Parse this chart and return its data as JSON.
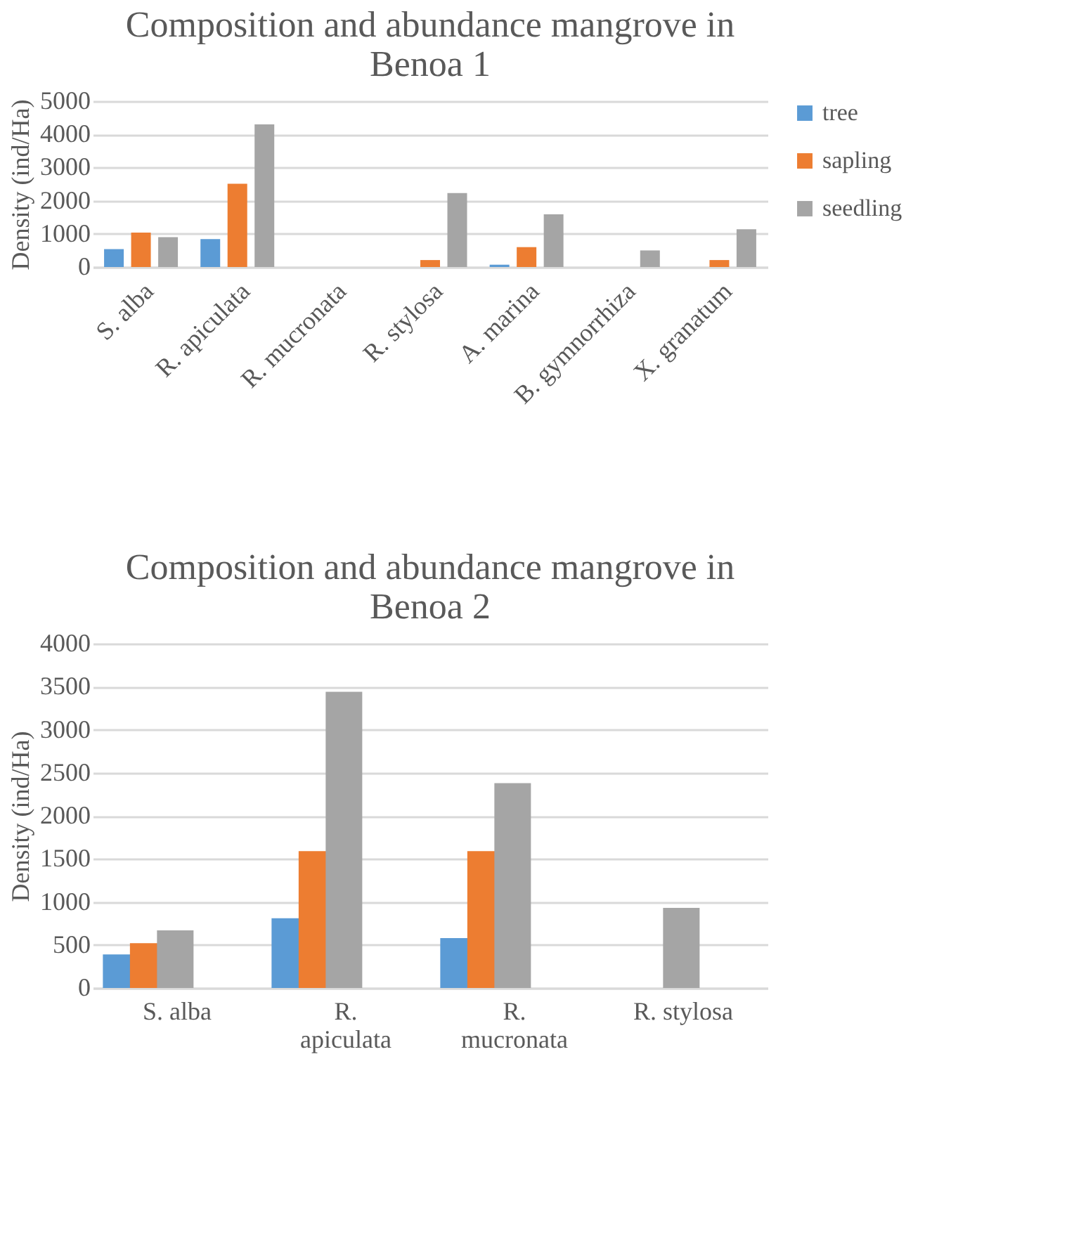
{
  "chart_data": [
    {
      "type": "bar",
      "title": "Composition and abundance mangrove in Benoa 1",
      "ylabel": "Density (ind/Ha)",
      "categories": [
        "S. alba",
        "R. apiculata",
        "R. mucronata",
        "R. stylosa",
        "A. marina",
        "B. gymnorrhiza",
        "X. granatum"
      ],
      "series": [
        {
          "name": "tree",
          "color": "#5b9bd5",
          "values": [
            540,
            840,
            0,
            0,
            70,
            0,
            0
          ]
        },
        {
          "name": "sapling",
          "color": "#ed7d31",
          "values": [
            1040,
            2510,
            0,
            210,
            600,
            0,
            210
          ]
        },
        {
          "name": "seedling",
          "color": "#a5a5a5",
          "values": [
            900,
            4300,
            0,
            2230,
            1590,
            500,
            1140
          ]
        }
      ],
      "ylim": [
        0,
        5000
      ],
      "yticks": [
        0,
        1000,
        2000,
        3000,
        4000,
        5000
      ],
      "grid": "y",
      "legend": "right"
    },
    {
      "type": "bar",
      "title": "Composition and abundance mangrove in Benoa 2",
      "ylabel": "Density (ind/Ha)",
      "categories": [
        "S. alba",
        "R. apiculata",
        "R. mucronata",
        "R. stylosa"
      ],
      "series": [
        {
          "name": "tree",
          "color": "#5b9bd5",
          "values": [
            390,
            810,
            580,
            0
          ]
        },
        {
          "name": "sapling",
          "color": "#ed7d31",
          "values": [
            520,
            1590,
            1590,
            0
          ]
        },
        {
          "name": "seedling",
          "color": "#a5a5a5",
          "values": [
            670,
            3440,
            2380,
            930
          ]
        }
      ],
      "ylim": [
        0,
        4000
      ],
      "yticks": [
        0,
        500,
        1000,
        1500,
        2000,
        2500,
        3000,
        3500,
        4000
      ],
      "grid": "y",
      "legend": "right"
    }
  ]
}
